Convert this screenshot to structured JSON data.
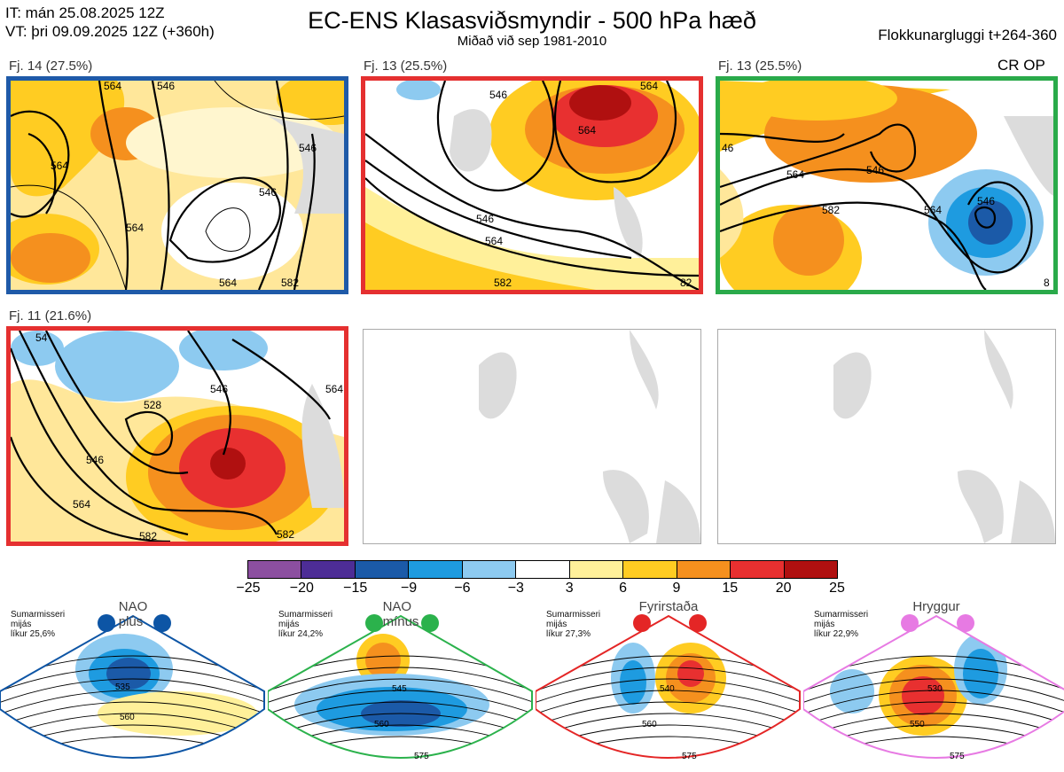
{
  "header": {
    "it_line": "IT: mán 25.08.2025 12Z",
    "vt_line": "VT: þri 09.09.2025 12Z  (+360h)",
    "title": "EC-ENS Klasasviðsmyndir - 500 hPa hæð",
    "subtitle": "Miðað við sep 1981-2010",
    "window": "Flokkunargluggi t+264-360"
  },
  "panels": [
    {
      "label": "Fj. 14 (27.5%)",
      "frame_color": "#1f5aa8"
    },
    {
      "label": "Fj. 13 (25.5%)",
      "frame_color": "#e53030"
    },
    {
      "label": "Fj. 13 (25.5%)",
      "frame_color": "#2aaa4a",
      "tag": "CR OP"
    },
    {
      "label": "Fj. 11 (21.6%)",
      "frame_color": "#e53030"
    },
    {
      "label": "",
      "frame_color": "#aaaaaa"
    },
    {
      "label": "",
      "frame_color": "#aaaaaa"
    }
  ],
  "contour_labels": {
    "p1": [
      "564",
      "546",
      "564",
      "564",
      "546",
      "546",
      "564",
      "582"
    ],
    "p2": [
      "546",
      "564",
      "564",
      "546",
      "564",
      "582",
      "82"
    ],
    "p3": [
      "46",
      "546",
      "564",
      "582",
      "546",
      "564",
      "8"
    ],
    "p4": [
      "528",
      "546",
      "564",
      "582",
      "582",
      "546",
      "564",
      "54"
    ]
  },
  "colorbar": {
    "ticks": [
      "−25",
      "−20",
      "−15",
      "−9",
      "−6",
      "−3",
      "3",
      "6",
      "9",
      "15",
      "20",
      "25"
    ],
    "colors": [
      "#8c4fa0",
      "#4d2d96",
      "#1b5aa8",
      "#1e9be0",
      "#8dcaf0",
      "#ffffff",
      "#fff09a",
      "#ffcc22",
      "#f5901e",
      "#e83030",
      "#b01010"
    ]
  },
  "regimes": [
    {
      "name": "NAO plús",
      "season": "Sumarmisseri",
      "sub": "mijás",
      "prob": "líkur 25,6%",
      "color": "#0d55a5",
      "labels": [
        "535",
        "560"
      ]
    },
    {
      "name": "NAO mínus",
      "season": "Sumarmisseri",
      "sub": "mijás",
      "prob": "líkur 24,2%",
      "color": "#2bb24c",
      "labels": [
        "545",
        "560",
        "575"
      ]
    },
    {
      "name": "Fyrirstaða",
      "season": "Sumarmisseri",
      "sub": "mijás",
      "prob": "líkur 27,3%",
      "color": "#e42626",
      "labels": [
        "540",
        "560",
        "575"
      ]
    },
    {
      "name": "Hryggur",
      "season": "Sumarmisseri",
      "sub": "mijás",
      "prob": "líkur 22,9%",
      "color": "#e77ae3",
      "labels": [
        "530",
        "550",
        "575"
      ]
    }
  ]
}
